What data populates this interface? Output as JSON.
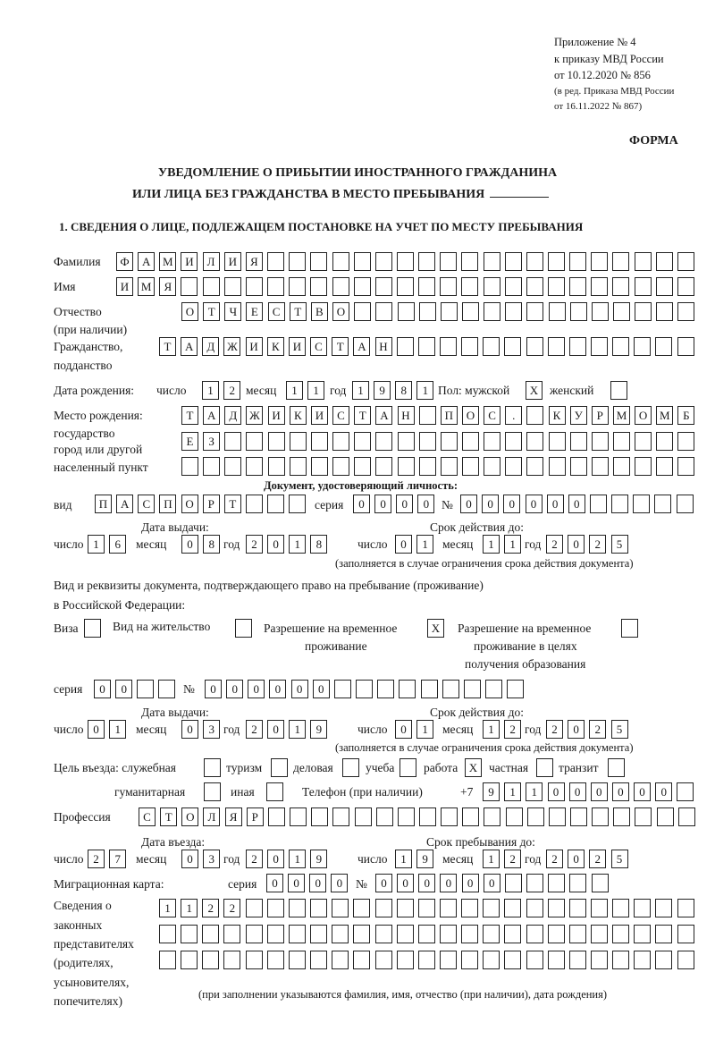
{
  "header": {
    "appendix": "Приложение № 4",
    "order": "к приказу МВД России",
    "order_date": "от 10.12.2020 № 856",
    "revision_1": "(в ред. Приказа МВД России",
    "revision_2": "от 16.11.2022 № 867)",
    "form_label": "ФОРМА"
  },
  "title": {
    "line1": "УВЕДОМЛЕНИЕ О ПРИБЫТИИ ИНОСТРАННОГО ГРАЖДАНИНА",
    "line2": "ИЛИ ЛИЦА БЕЗ ГРАЖДАНСТВА В МЕСТО ПРЕБЫВАНИЯ"
  },
  "section1": {
    "heading": "1. СВЕДЕНИЯ О ЛИЦЕ, ПОДЛЕЖАЩЕМ ПОСТАНОВКЕ НА УЧЕТ ПО МЕСТУ ПРЕБЫВАНИЯ",
    "labels": {
      "surname": "Фамилия",
      "name": "Имя",
      "patronymic_1": "Отчество",
      "patronymic_2": "(при наличии)",
      "citizenship_1": "Гражданство,",
      "citizenship_2": "подданство",
      "birth_date": "Дата рождения:",
      "day": "число",
      "month": "месяц",
      "year": "год",
      "sex": "Пол: мужской",
      "female": "женский",
      "birthplace_1": "Место рождения:",
      "birthplace_2": "государство",
      "birthplace_3": "город или другой",
      "birthplace_4": "населенный пункт",
      "id_doc": "Документ, удостоверяющий личность:",
      "kind": "вид",
      "series": "серия",
      "number": "№",
      "issue_date": "Дата выдачи:",
      "valid_until": "Срок действия до:",
      "validity_note": "(заполняется в случае ограничения срока действия документа)",
      "right_doc_1": "Вид и реквизиты документа, подтверждающего право на пребывание (проживание)",
      "right_doc_2": "в Российской Федерации:",
      "visa": "Виза",
      "residence_permit": "Вид на жительство",
      "temp_permit_1": "Разрешение на временное",
      "temp_permit_2": "проживание",
      "edu_permit_1": "Разрешение на временное",
      "edu_permit_2": "проживание в целях",
      "edu_permit_3": "получения образования",
      "purpose": "Цель въезда: служебная",
      "tourism": "туризм",
      "business": "деловая",
      "study": "учеба",
      "work": "работа",
      "private": "частная",
      "transit": "транзит",
      "humanitarian": "гуманитарная",
      "other": "иная",
      "phone": "Телефон (при наличии)",
      "phone_prefix": "+7",
      "profession": "Профессия",
      "entry_date": "Дата въезда:",
      "stay_until": "Срок пребывания до:",
      "migration_card": "Миграционная карта:",
      "reps_1": "Сведения о",
      "reps_2": "законных",
      "reps_3": "представителях",
      "reps_4": "(родителях,",
      "reps_5": "усыновителях,",
      "reps_6": "попечителях)",
      "reps_note": "(при заполнении указываются фамилия, имя, отчество (при наличии), дата рождения)"
    },
    "values": {
      "surname": "ФАМИЛИЯ",
      "name": "ИМЯ",
      "patronymic": "ОТЧЕСТВО",
      "citizenship": "ТАДЖИКИСТАН",
      "birth_day": "12",
      "birth_month": "11",
      "birth_year": "1981",
      "sex_male": "X",
      "sex_female": "",
      "birthplace_1": "ТАДЖИКИСТАН ПОС. КУРМОМБ",
      "birthplace_2": "ЕЗ",
      "birthplace_3": "",
      "id_kind": "ПАСПОРТ",
      "id_series": "0000",
      "id_number": "000000",
      "id_issue_day": "16",
      "id_issue_month": "08",
      "id_issue_year": "2018",
      "id_valid_day": "01",
      "id_valid_month": "11",
      "id_valid_year": "2025",
      "visa": "",
      "residence_permit": "",
      "temp_permit": "X",
      "edu_permit": "",
      "permit_series": "00",
      "permit_number": "000000",
      "permit_issue_day": "01",
      "permit_issue_month": "03",
      "permit_issue_year": "2019",
      "permit_valid_day": "01",
      "permit_valid_month": "12",
      "permit_valid_year": "2025",
      "purpose_official": "",
      "purpose_tourism": "",
      "purpose_business": "",
      "purpose_study": "",
      "purpose_work": "X",
      "purpose_private": "",
      "purpose_transit": "",
      "purpose_humanitarian": "",
      "purpose_other": "",
      "phone": "911000000",
      "profession": "СТОЛЯР",
      "entry_day": "27",
      "entry_month": "03",
      "entry_year": "2019",
      "stay_day": "19",
      "stay_month": "12",
      "stay_year": "2025",
      "mc_series": "0000",
      "mc_number": "000000",
      "reps_1": "1122",
      "reps_2": "",
      "reps_3": ""
    }
  }
}
